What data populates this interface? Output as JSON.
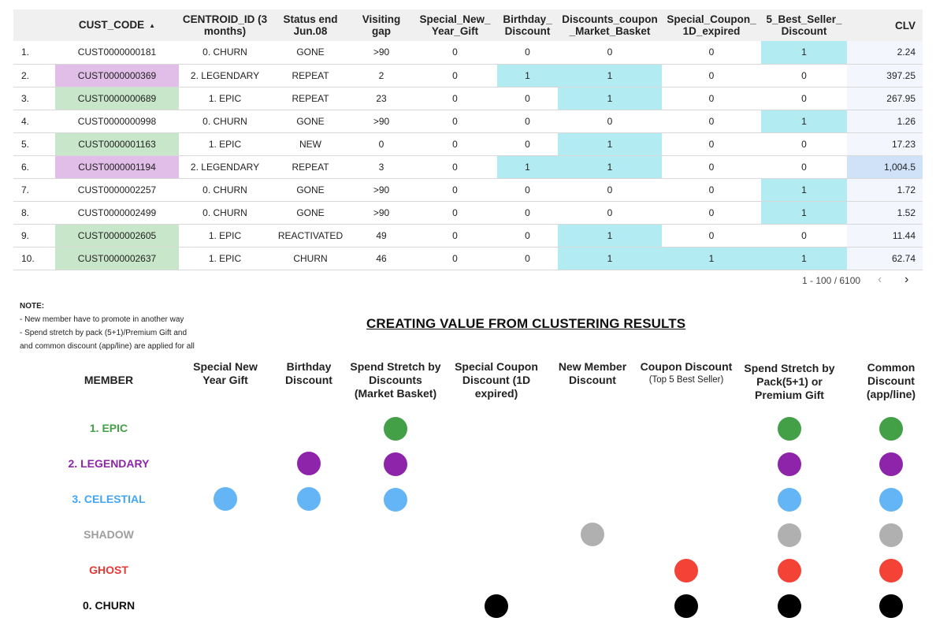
{
  "table": {
    "columns": [
      "",
      "CUST_CODE",
      "CENTROID_ID (3 months)",
      "Status end Jun.08",
      "Visiting gap",
      "Special_New_ Year_Gift",
      "Birthday_ Discount",
      "Discounts_coupon _Market_Basket",
      "Special_Coupon_ 1D_expired",
      "5_Best_Seller_ Discount",
      "CLV"
    ],
    "sort_indicator": "▲",
    "rows": [
      {
        "idx": "1.",
        "cust": "CUST0000000181",
        "centroid": "0. CHURN",
        "status": "GONE",
        "gap": ">90",
        "newyear": "0",
        "birthday": "0",
        "market": "0",
        "coupon1d": "0",
        "bestseller": "1",
        "clv": "2.24"
      },
      {
        "idx": "2.",
        "cust": "CUST0000000369",
        "centroid": "2. LEGENDARY",
        "status": "REPEAT",
        "gap": "2",
        "newyear": "0",
        "birthday": "1",
        "market": "1",
        "coupon1d": "0",
        "bestseller": "0",
        "clv": "397.25"
      },
      {
        "idx": "3.",
        "cust": "CUST0000000689",
        "centroid": "1. EPIC",
        "status": "REPEAT",
        "gap": "23",
        "newyear": "0",
        "birthday": "0",
        "market": "1",
        "coupon1d": "0",
        "bestseller": "0",
        "clv": "267.95"
      },
      {
        "idx": "4.",
        "cust": "CUST0000000998",
        "centroid": "0. CHURN",
        "status": "GONE",
        "gap": ">90",
        "newyear": "0",
        "birthday": "0",
        "market": "0",
        "coupon1d": "0",
        "bestseller": "1",
        "clv": "1.26"
      },
      {
        "idx": "5.",
        "cust": "CUST0000001163",
        "centroid": "1. EPIC",
        "status": "NEW",
        "gap": "0",
        "newyear": "0",
        "birthday": "0",
        "market": "1",
        "coupon1d": "0",
        "bestseller": "0",
        "clv": "17.23"
      },
      {
        "idx": "6.",
        "cust": "CUST0000001194",
        "centroid": "2. LEGENDARY",
        "status": "REPEAT",
        "gap": "3",
        "newyear": "0",
        "birthday": "1",
        "market": "1",
        "coupon1d": "0",
        "bestseller": "0",
        "clv": "1,004.5"
      },
      {
        "idx": "7.",
        "cust": "CUST0000002257",
        "centroid": "0. CHURN",
        "status": "GONE",
        "gap": ">90",
        "newyear": "0",
        "birthday": "0",
        "market": "0",
        "coupon1d": "0",
        "bestseller": "1",
        "clv": "1.72"
      },
      {
        "idx": "8.",
        "cust": "CUST0000002499",
        "centroid": "0. CHURN",
        "status": "GONE",
        "gap": ">90",
        "newyear": "0",
        "birthday": "0",
        "market": "0",
        "coupon1d": "0",
        "bestseller": "1",
        "clv": "1.52"
      },
      {
        "idx": "9.",
        "cust": "CUST0000002605",
        "centroid": "1. EPIC",
        "status": "REACTIVATED",
        "gap": "49",
        "newyear": "0",
        "birthday": "0",
        "market": "1",
        "coupon1d": "0",
        "bestseller": "0",
        "clv": "11.44"
      },
      {
        "idx": "10.",
        "cust": "CUST0000002637",
        "centroid": "1. EPIC",
        "status": "CHURN",
        "gap": "46",
        "newyear": "0",
        "birthday": "0",
        "market": "1",
        "coupon1d": "1",
        "bestseller": "1",
        "clv": "62.74"
      }
    ],
    "colors": {
      "header_bg": "#f0f0f0",
      "highlight_flag": "#b2ebf2",
      "cust_epic": "#c8e6c9",
      "cust_legendary": "#e1bee7",
      "clv_low": "#f3f7fd",
      "clv_high": "#cfe2f8"
    }
  },
  "pagination": {
    "range": "1 - 100 / 6100",
    "prev_icon": "chevron-left-icon",
    "next_icon": "chevron-right-icon"
  },
  "note": {
    "title": "NOTE:",
    "lines": [
      "- New member have to promote in another way",
      "- Spend stretch by pack (5+1)/Premium Gift and",
      "and common discount (app/line) are applied for all"
    ]
  },
  "matrix": {
    "title": "CREATING VALUE FROM CLUSTERING RESULTS",
    "member_header": "MEMBER",
    "columns": [
      {
        "label": "Special New Year Gift",
        "sub": ""
      },
      {
        "label": "Birthday Discount",
        "sub": ""
      },
      {
        "label": "Spend Stretch by Discounts (Market Basket)",
        "sub": ""
      },
      {
        "label": "Special Coupon Discount (1D expired)",
        "sub": ""
      },
      {
        "label": "New Member Discount",
        "sub": ""
      },
      {
        "label": "Coupon Discount",
        "sub": "(Top 5 Best Seller)"
      },
      {
        "label": "Spend Stretch by Pack(5+1) or Premium Gift",
        "sub": ""
      },
      {
        "label": "Common Discount (app/line)",
        "sub": ""
      }
    ],
    "rows": [
      {
        "label": "1. EPIC",
        "color": "#43a047",
        "marks": [
          0,
          0,
          1,
          0,
          0,
          0,
          1,
          1
        ]
      },
      {
        "label": "2. LEGENDARY",
        "color": "#8e24aa",
        "marks": [
          0,
          1,
          1,
          0,
          0,
          0,
          1,
          1
        ]
      },
      {
        "label": "3. CELESTIAL",
        "color": "#64b5f6",
        "marks": [
          1,
          1,
          1,
          0,
          0,
          0,
          1,
          1
        ]
      },
      {
        "label": "SHADOW",
        "color": "#b0b0b0",
        "marks": [
          0,
          0,
          0,
          0,
          1,
          0,
          1,
          1
        ]
      },
      {
        "label": "GHOST",
        "color": "#f44336",
        "marks": [
          0,
          0,
          0,
          0,
          0,
          1,
          1,
          1
        ]
      },
      {
        "label": "0. CHURN",
        "color": "#000000",
        "marks": [
          0,
          0,
          0,
          1,
          0,
          1,
          1,
          1
        ]
      }
    ],
    "label_colors": [
      "#43a047",
      "#8e24aa",
      "#42a5f5",
      "#9e9e9e",
      "#e53935",
      "#111111"
    ]
  }
}
